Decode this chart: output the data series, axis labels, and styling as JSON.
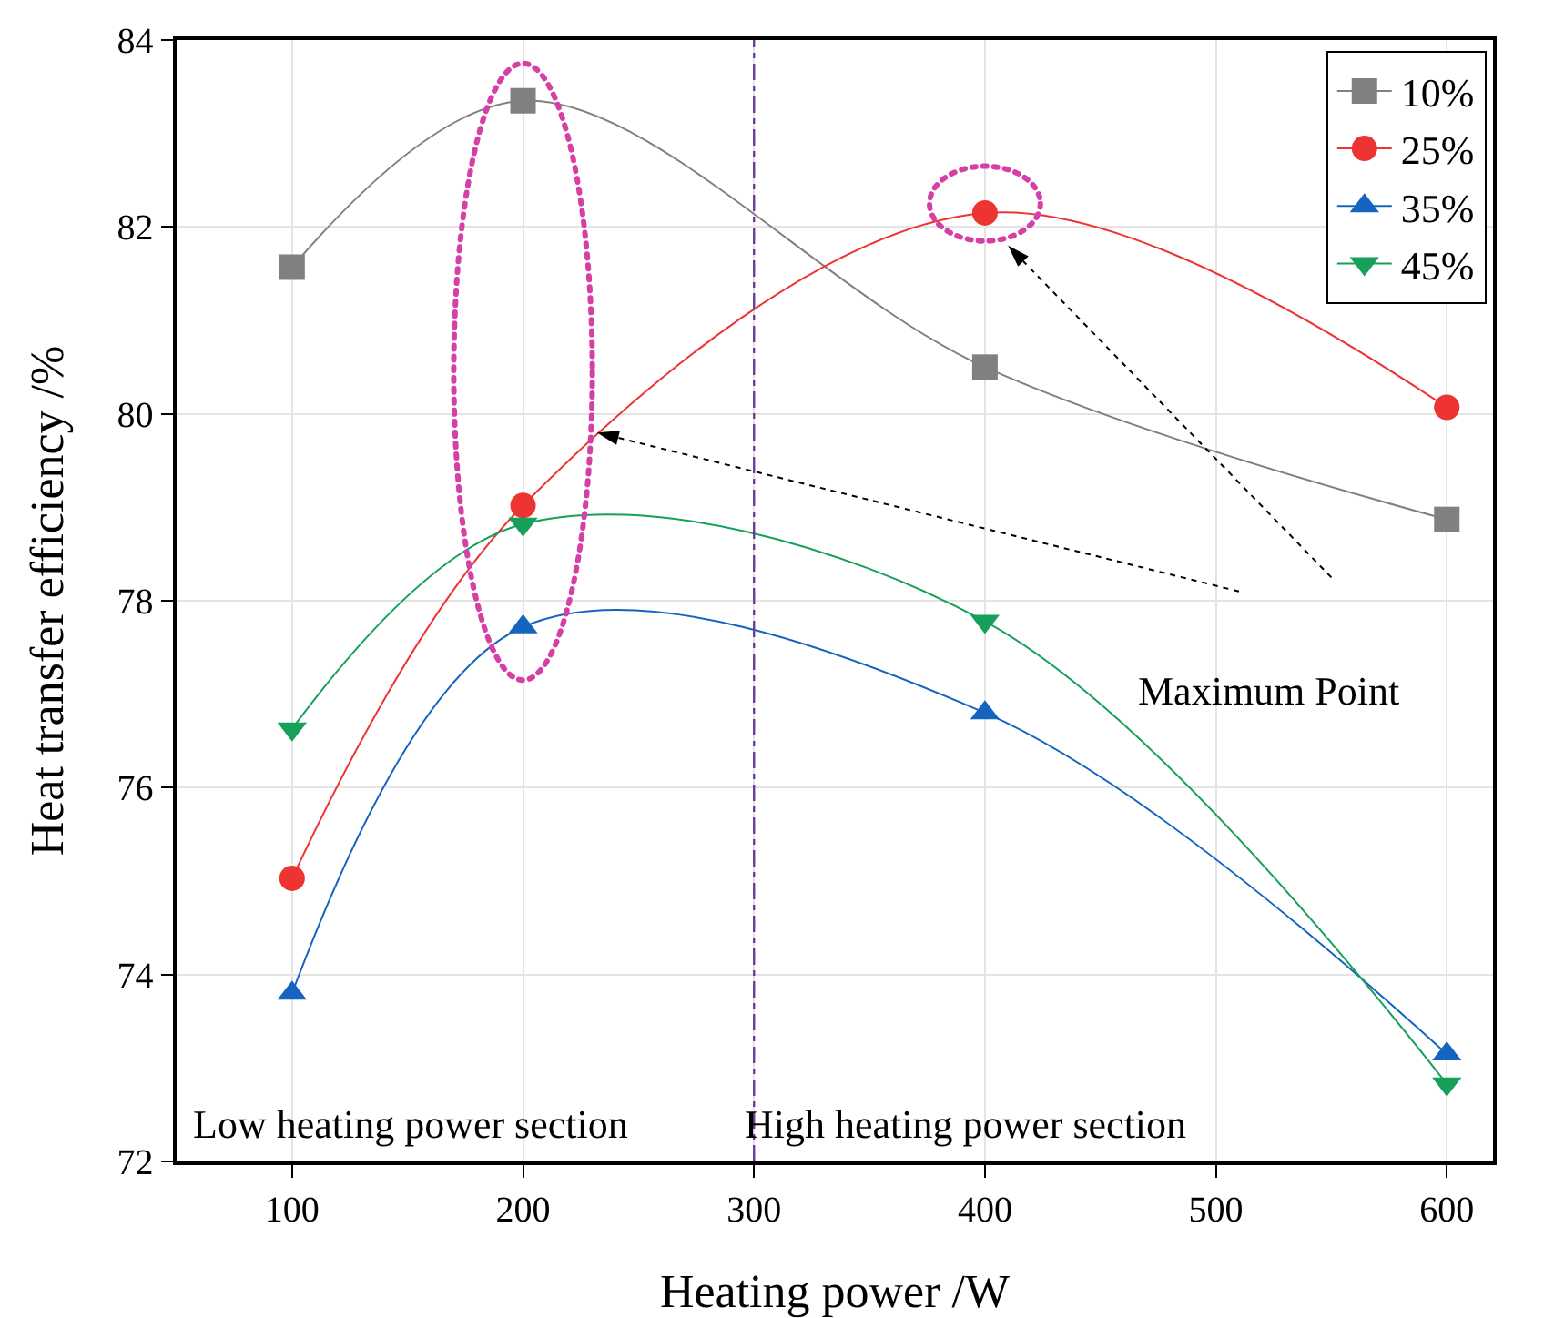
{
  "chart_data": {
    "type": "line",
    "xlabel": "Heating power /W",
    "ylabel": "Heat transfer efficiency /%",
    "x": [
      100,
      200,
      400,
      600
    ],
    "series": [
      {
        "name": "10%",
        "color": "#808080",
        "marker": "square",
        "values": [
          81.57,
          83.35,
          80.5,
          78.87
        ]
      },
      {
        "name": "25%",
        "color": "#ee3333",
        "marker": "circle",
        "values": [
          75.03,
          79.02,
          82.15,
          80.07
        ]
      },
      {
        "name": "35%",
        "color": "#1565c0",
        "marker": "triangle",
        "values": [
          73.8,
          77.72,
          76.8,
          73.15
        ]
      },
      {
        "name": "45%",
        "color": "#16a05a",
        "marker": "triangle-down",
        "values": [
          76.63,
          78.82,
          77.78,
          72.83
        ]
      }
    ],
    "xlim": [
      50,
      620
    ],
    "xticks": [
      100,
      200,
      300,
      400,
      500,
      600
    ],
    "ylim": [
      72,
      84
    ],
    "yticks": [
      72,
      74,
      76,
      78,
      80,
      82,
      84
    ],
    "ref_lines": [
      {
        "axis": "x",
        "value": 300,
        "color": "#6a3d9a",
        "line_style": "dashdot"
      }
    ],
    "annotations": [
      "Low heating power section",
      "High heating power section",
      "Maximum Point"
    ],
    "grid": true,
    "legend": "top right",
    "line_style": "solid"
  }
}
